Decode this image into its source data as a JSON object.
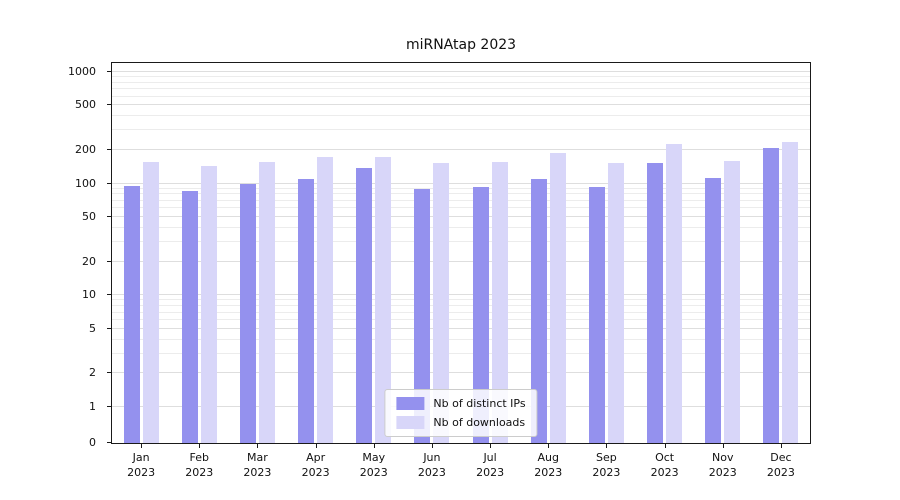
{
  "chart_data": {
    "type": "bar",
    "title": "miRNAtap 2023",
    "scale": "symlog",
    "grid": true,
    "legend_position": "lower center",
    "categories": [
      "Jan",
      "Feb",
      "Mar",
      "Apr",
      "May",
      "Jun",
      "Jul",
      "Aug",
      "Sep",
      "Oct",
      "Nov",
      "Dec"
    ],
    "category_year": "2023",
    "yticks": [
      0,
      1,
      2,
      5,
      10,
      20,
      50,
      100,
      200,
      500,
      1000
    ],
    "ylim": [
      0,
      1200
    ],
    "series": [
      {
        "name": "Nb of distinct IPs",
        "color": "#9491ee",
        "values": [
          95,
          85,
          100,
          110,
          138,
          90,
          94,
          110,
          93,
          152,
          112,
          210
        ]
      },
      {
        "name": "Nb of downloads",
        "color": "#d8d6f9",
        "values": [
          155,
          145,
          155,
          172,
          172,
          152,
          155,
          188,
          153,
          225,
          158,
          238
        ]
      }
    ]
  }
}
